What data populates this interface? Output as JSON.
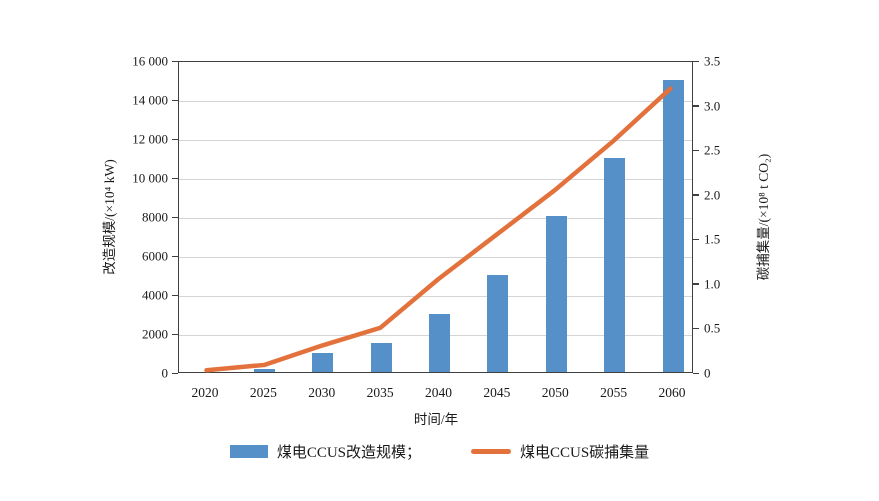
{
  "colors": {
    "bar": "#5590c9",
    "line": "#e2713c",
    "grid": "#d4d4d4",
    "axis": "#3f3f3f",
    "background": "#ffffff",
    "text": "#1a1a1a"
  },
  "chart_data": {
    "type": "bar",
    "categories": [
      "2020",
      "2025",
      "2030",
      "2035",
      "2040",
      "2045",
      "2050",
      "2055",
      "2060"
    ],
    "series": [
      {
        "name": "煤电CCUS改造规模",
        "kind": "bar",
        "axis": "left",
        "color": "#5590c9",
        "values": [
          0,
          150,
          1000,
          1500,
          3000,
          5000,
          8000,
          11000,
          15000
        ]
      },
      {
        "name": "煤电CCUS碳捕集量",
        "kind": "line",
        "axis": "right",
        "color": "#e2713c",
        "values": [
          0.02,
          0.08,
          0.3,
          0.5,
          1.05,
          1.55,
          2.05,
          2.6,
          3.2
        ]
      }
    ],
    "title": "",
    "xlabel": "时间/年",
    "ylabel_left": "改造规模/(×10⁴ kW)",
    "ylabel_right": "碳捕集量/(×10⁸ t CO₂)",
    "left_axis": {
      "min": 0,
      "max": 16000,
      "step": 2000,
      "tick_labels": [
        "0",
        "2000",
        "4000",
        "6000",
        "8000",
        "10 000",
        "12 000",
        "14 000",
        "16 000"
      ]
    },
    "right_axis": {
      "min": 0,
      "max": 3.5,
      "step": 0.5,
      "tick_labels": [
        "0",
        "0.5",
        "1.0",
        "1.5",
        "2.0",
        "2.5",
        "3.0",
        "3.5"
      ]
    },
    "grid": "horizontal-on",
    "legend_position": "bottom-center",
    "legend": [
      {
        "label": "煤电CCUS改造规模；",
        "swatch": "bar"
      },
      {
        "label": "煤电CCUS碳捕集量",
        "swatch": "line"
      }
    ]
  }
}
